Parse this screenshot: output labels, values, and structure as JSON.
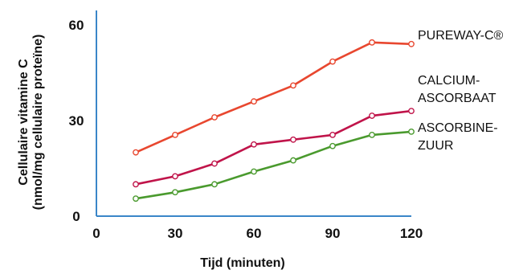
{
  "chart_data": {
    "type": "line",
    "xlabel": "Tijd (minuten)",
    "ylabel": [
      "Cellulaire vitamine C",
      "(nmol/mg cellulaire proteïne)"
    ],
    "xlim": [
      0,
      120
    ],
    "ylim": [
      0,
      60
    ],
    "xticks": [
      "0",
      "30",
      "60",
      "90",
      "120"
    ],
    "yticks": [
      "0",
      "30",
      "60"
    ],
    "grid": false,
    "axis_color": "#3a86c8",
    "series": [
      {
        "name": "PUREWAY-C®",
        "label_lines": [
          "PUREWAY-C®"
        ],
        "color": "#e8472f",
        "x": [
          15,
          30,
          45,
          60,
          75,
          90,
          105,
          120
        ],
        "y": [
          20,
          25.5,
          31,
          36,
          41,
          48.5,
          54.5,
          54
        ]
      },
      {
        "name": "CALCIUM-ASCORBAAT",
        "label_lines": [
          "CALCIUM-",
          "ASCORBAAT"
        ],
        "color": "#c0144a",
        "x": [
          15,
          30,
          45,
          60,
          75,
          90,
          105,
          120
        ],
        "y": [
          10,
          12.5,
          16.5,
          22.5,
          24,
          25.5,
          31.5,
          33
        ]
      },
      {
        "name": "ASCORBINE-ZUUR",
        "label_lines": [
          "ASCORBINE-",
          "ZUUR"
        ],
        "color": "#4a9a2e",
        "x": [
          15,
          30,
          45,
          60,
          75,
          90,
          105,
          120
        ],
        "y": [
          5.5,
          7.5,
          10,
          14,
          17.5,
          22,
          25.5,
          26.5
        ]
      }
    ]
  }
}
